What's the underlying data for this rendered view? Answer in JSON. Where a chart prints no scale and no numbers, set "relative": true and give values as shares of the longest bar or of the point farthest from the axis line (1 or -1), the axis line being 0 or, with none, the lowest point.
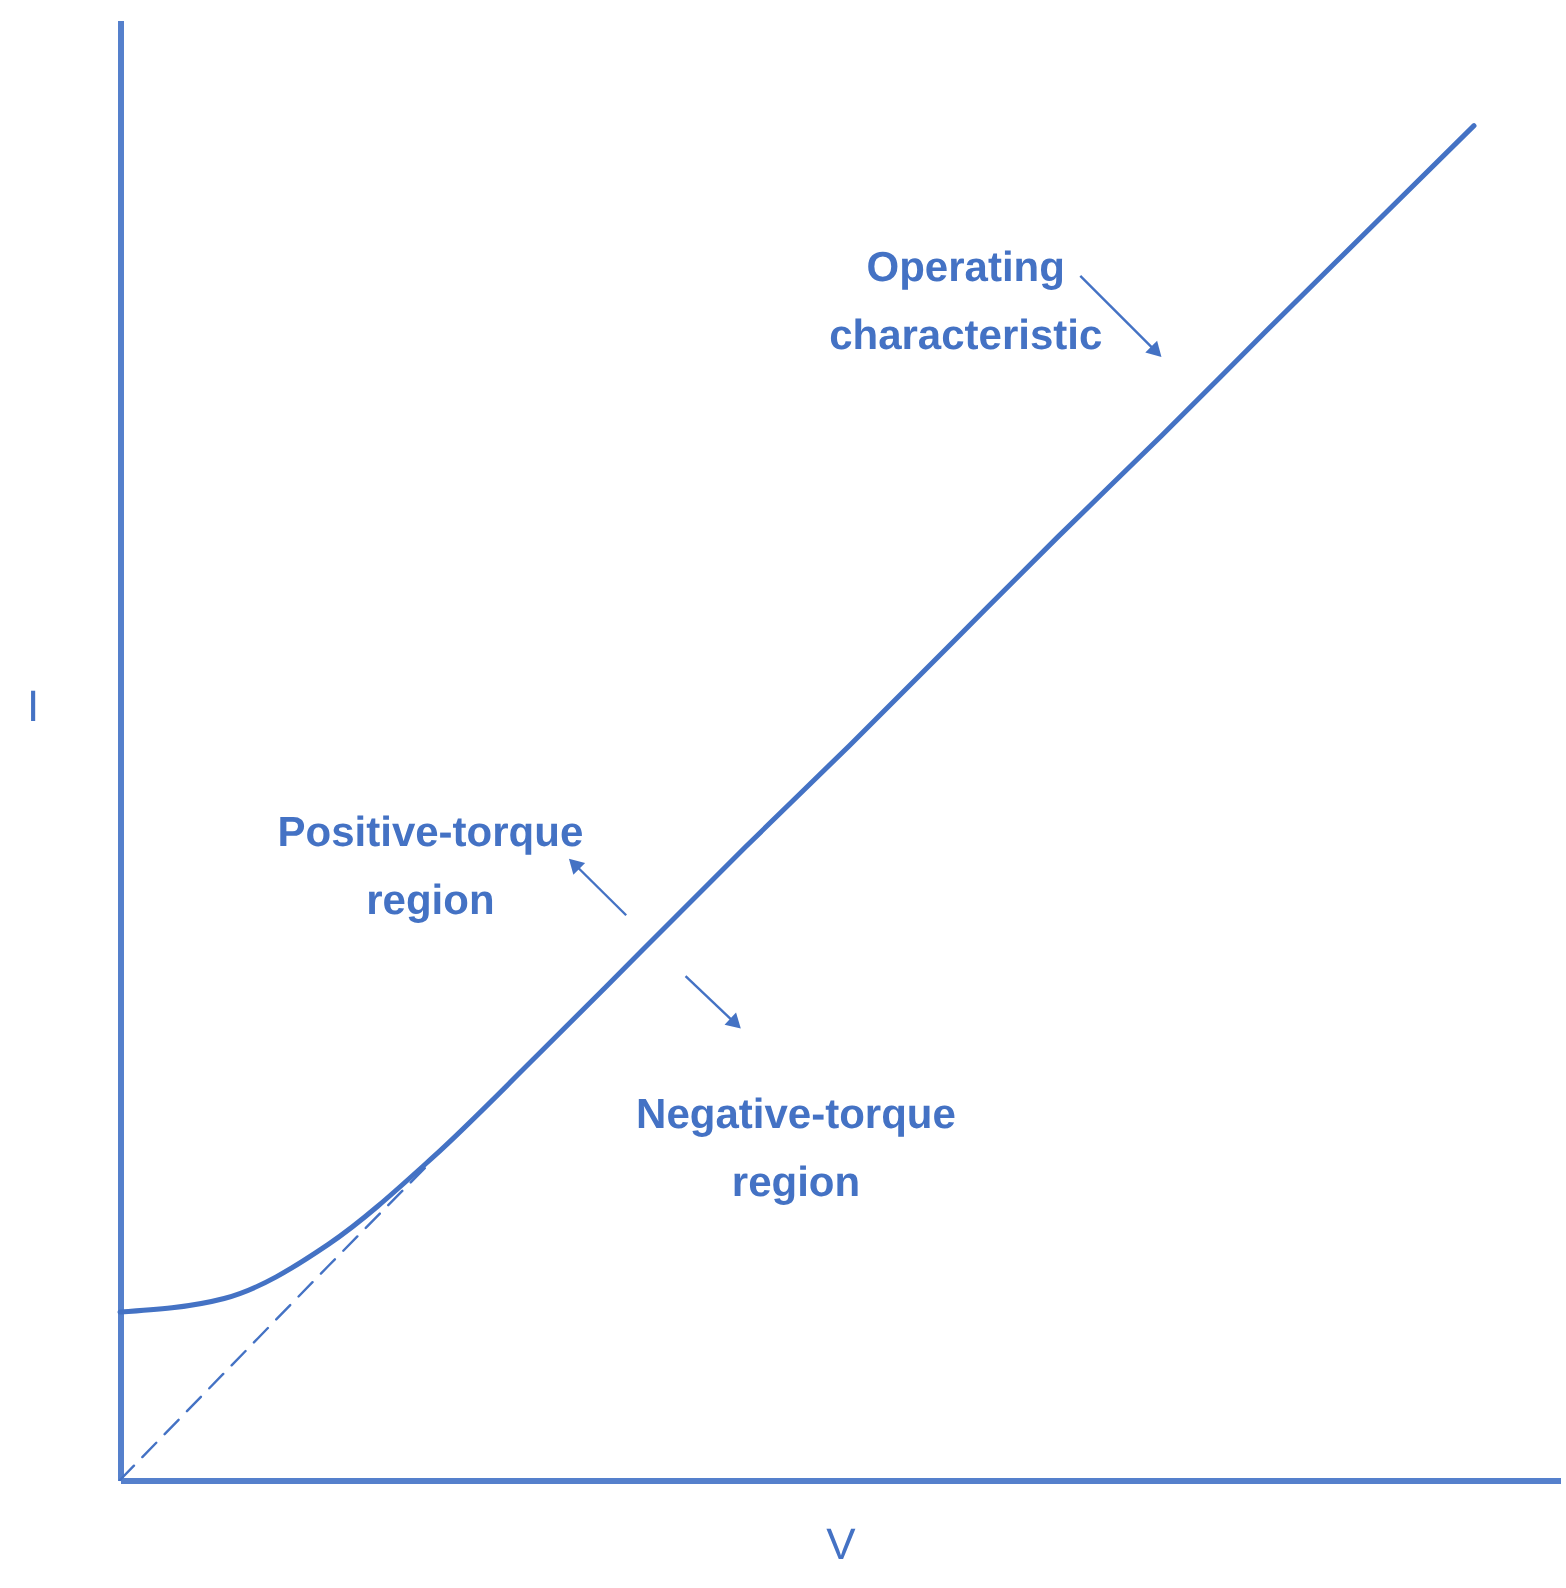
{
  "chart_data": {
    "type": "line",
    "relative": true,
    "xlabel": "V",
    "ylabel": "I",
    "tick_labels": false,
    "grid": false,
    "categories": [
      null,
      null,
      null,
      null,
      null,
      null,
      null,
      null,
      null,
      null,
      null,
      null,
      null,
      null
    ],
    "series": [
      {
        "color": "#4472c4",
        "line_style": "solid",
        "values": [
          0.124,
          0.134,
          0.174,
          0.238,
          0.313,
          0.39,
          0.467,
          0.542,
          0.619,
          0.696,
          0.771,
          0.848,
          0.924,
          1
        ]
      },
      {
        "color": "#4472c4",
        "line_style": "dashed",
        "values": [
          0,
          0.079,
          0.158,
          0.236,
          null,
          null,
          null,
          null,
          null,
          null,
          null,
          null,
          null,
          null
        ]
      }
    ],
    "annotations": [
      "Operating characteristic",
      "Positive-torque region",
      "Negative-torque region"
    ]
  }
}
